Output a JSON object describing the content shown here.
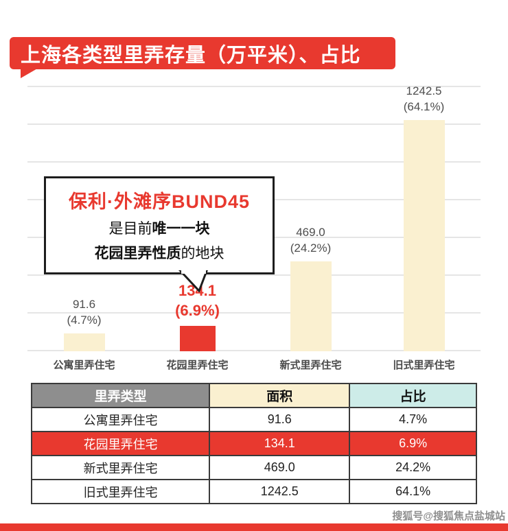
{
  "header": {
    "title": "上海各类型里弄存量（万平米）、占比"
  },
  "callout": {
    "title": "保利·外滩序BUND45",
    "line2_normal": "是目前",
    "line2_bold": "唯一一块",
    "line3_bold": "花园里弄性质",
    "line3_normal": "的地块"
  },
  "chart_data": {
    "type": "bar",
    "title": "上海各类型里弄存量（万平米）、占比",
    "categories": [
      "公寓里弄住宅",
      "花园里弄住宅",
      "新式里弄住宅",
      "旧式里弄住宅"
    ],
    "values": [
      91.6,
      134.1,
      469.0,
      1242.5
    ],
    "value_labels": [
      "91.6",
      "134.1",
      "469.0",
      "1242.5"
    ],
    "pct_labels": [
      "(4.7%)",
      "(6.9%)",
      "(24.2%)",
      "(64.1%)"
    ],
    "highlight_index": 1,
    "xlabel": "",
    "ylabel": "",
    "ylim": [
      0,
      1400
    ],
    "grid_step": 200,
    "grid": true,
    "legend": "none"
  },
  "table": {
    "headers": [
      "里弄类型",
      "面积",
      "占比"
    ],
    "rows": [
      [
        "公寓里弄住宅",
        "91.6",
        "4.7%"
      ],
      [
        "花园里弄住宅",
        "134.1",
        "6.9%"
      ],
      [
        "新式里弄住宅",
        "469.0",
        "24.2%"
      ],
      [
        "旧式里弄住宅",
        "1242.5",
        "64.1%"
      ]
    ],
    "highlight_row": 1
  },
  "watermark": "搜狐号@搜狐焦点盐城站",
  "colors": {
    "accent": "#e8392f",
    "cream": "#faf0d0",
    "teal": "#cdece8",
    "table_header_gray": "#8e8e8e"
  }
}
